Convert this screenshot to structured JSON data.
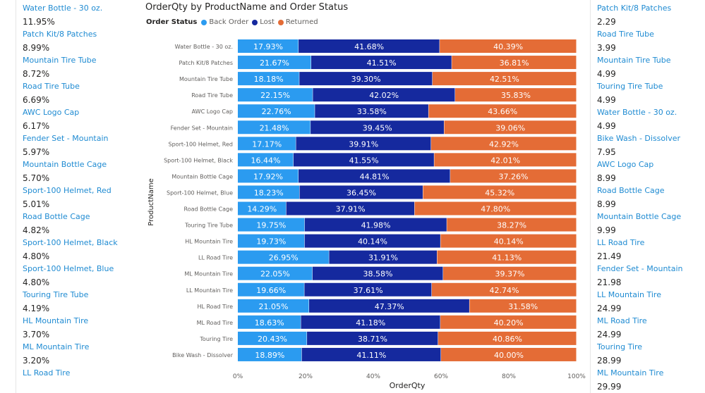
{
  "left_cards": [
    {
      "name": "Water Bottle - 30 oz.",
      "value": "11.95%"
    },
    {
      "name": "Patch Kit/8 Patches",
      "value": "8.99%"
    },
    {
      "name": "Mountain Tire Tube",
      "value": "8.72%"
    },
    {
      "name": "Road Tire Tube",
      "value": "6.69%"
    },
    {
      "name": "AWC Logo Cap",
      "value": "6.17%"
    },
    {
      "name": "Fender Set - Mountain",
      "value": "5.97%"
    },
    {
      "name": "Mountain Bottle Cage",
      "value": "5.70%"
    },
    {
      "name": "Sport-100 Helmet, Red",
      "value": "5.01%"
    },
    {
      "name": "Road Bottle Cage",
      "value": "4.82%"
    },
    {
      "name": "Sport-100 Helmet, Black",
      "value": "4.80%"
    },
    {
      "name": "Sport-100 Helmet, Blue",
      "value": "4.80%"
    },
    {
      "name": "Touring Tire Tube",
      "value": "4.19%"
    },
    {
      "name": "HL Mountain Tire",
      "value": "3.70%"
    },
    {
      "name": "ML Mountain Tire",
      "value": "3.20%"
    },
    {
      "name": "LL Road Tire",
      "value": ""
    }
  ],
  "right_cards": [
    {
      "name": "Patch Kit/8 Patches",
      "value": "2.29"
    },
    {
      "name": "Road Tire Tube",
      "value": "3.99"
    },
    {
      "name": "Mountain Tire Tube",
      "value": "4.99"
    },
    {
      "name": "Touring Tire Tube",
      "value": "4.99"
    },
    {
      "name": "Water Bottle - 30 oz.",
      "value": "4.99"
    },
    {
      "name": "Bike Wash - Dissolver",
      "value": "7.95"
    },
    {
      "name": "AWC Logo Cap",
      "value": "8.99"
    },
    {
      "name": "Road Bottle Cage",
      "value": "8.99"
    },
    {
      "name": "Mountain Bottle Cage",
      "value": "9.99"
    },
    {
      "name": "LL Road Tire",
      "value": "21.49"
    },
    {
      "name": "Fender Set - Mountain",
      "value": "21.98"
    },
    {
      "name": "LL Mountain Tire",
      "value": "24.99"
    },
    {
      "name": "ML Road Tire",
      "value": "24.99"
    },
    {
      "name": "Touring Tire",
      "value": "28.99"
    },
    {
      "name": "ML Mountain Tire",
      "value": "29.99"
    }
  ],
  "colors": {
    "back_order": "#2b9bf0",
    "lost": "#15299e",
    "returned": "#e46c36",
    "accent": "#1f8bd2"
  },
  "legend": {
    "title": "Order Status"
  },
  "chart_data": {
    "type": "bar",
    "orientation": "horizontal",
    "stacked": "100%",
    "title": "OrderQty by ProductName and Order Status",
    "xlabel": "OrderQty",
    "ylabel": "ProductName",
    "xlim": [
      0,
      100
    ],
    "xticks": [
      "0%",
      "20%",
      "40%",
      "60%",
      "80%",
      "100%"
    ],
    "legend_position": "top-left",
    "categories": [
      "Water Bottle - 30 oz.",
      "Patch Kit/8 Patches",
      "Mountain Tire Tube",
      "Road Tire Tube",
      "AWC Logo Cap",
      "Fender Set - Mountain",
      "Sport-100 Helmet, Red",
      "Sport-100 Helmet, Black",
      "Mountain Bottle Cage",
      "Sport-100 Helmet, Blue",
      "Road Bottle Cage",
      "Touring Tire Tube",
      "HL Mountain Tire",
      "LL Road Tire",
      "ML Mountain Tire",
      "LL Mountain Tire",
      "HL Road Tire",
      "ML Road Tire",
      "Touring Tire",
      "Bike Wash - Dissolver"
    ],
    "series": [
      {
        "name": "Back Order",
        "values": [
          17.93,
          21.67,
          18.18,
          22.15,
          22.76,
          21.48,
          17.17,
          16.44,
          17.92,
          18.23,
          14.29,
          19.75,
          19.73,
          26.95,
          22.05,
          19.66,
          21.05,
          18.63,
          20.43,
          18.89
        ]
      },
      {
        "name": "Lost",
        "values": [
          41.68,
          41.51,
          39.3,
          42.02,
          33.58,
          39.45,
          39.91,
          41.55,
          44.81,
          36.45,
          37.91,
          41.98,
          40.14,
          31.91,
          38.58,
          37.61,
          47.37,
          41.18,
          38.71,
          41.11
        ]
      },
      {
        "name": "Returned",
        "values": [
          40.39,
          36.81,
          42.51,
          35.83,
          43.66,
          39.06,
          42.92,
          42.01,
          37.26,
          45.32,
          47.8,
          38.27,
          40.14,
          41.13,
          39.37,
          42.74,
          31.58,
          40.2,
          40.86,
          40.0
        ]
      }
    ]
  }
}
